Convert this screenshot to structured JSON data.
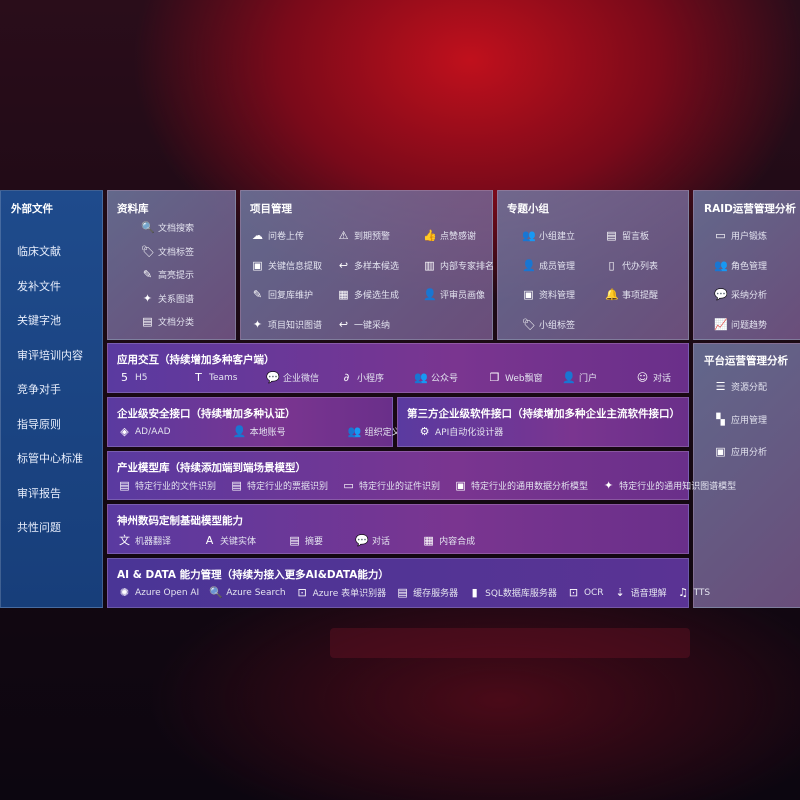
{
  "sidebar": {
    "title": "外部文件",
    "items": [
      "临床文献",
      "发补文件",
      "关键字池",
      "审评培训内容",
      "竞争对手",
      "指导原则",
      "标管中心标准",
      "审评报告",
      "共性问题"
    ]
  },
  "library": {
    "title": "资料库",
    "items": [
      {
        "icon": "doc-search-icon",
        "g": "🔍",
        "label": "文档搜索"
      },
      {
        "icon": "tag-icon",
        "g": "🏷",
        "label": "文档标签"
      },
      {
        "icon": "pen-icon",
        "g": "✎",
        "label": "高亮提示"
      },
      {
        "icon": "graph-icon",
        "g": "✦",
        "label": "关系图谱"
      },
      {
        "icon": "doc-category-icon",
        "g": "▤",
        "label": "文档分类"
      }
    ]
  },
  "project": {
    "title": "项目管理",
    "items": [
      {
        "icon": "cloud-upload-icon",
        "g": "☁",
        "label": "问卷上传"
      },
      {
        "icon": "alarm-icon",
        "g": "⚠",
        "label": "到期预警"
      },
      {
        "icon": "thumbs-up-icon",
        "g": "👍",
        "label": "点赞感谢"
      },
      {
        "icon": "window-icon",
        "g": "▣",
        "label": "关键信息提取"
      },
      {
        "icon": "reply-icon",
        "g": "↩",
        "label": "多样本候选"
      },
      {
        "icon": "ranking-icon",
        "g": "▥",
        "label": "内部专家排名"
      },
      {
        "icon": "edit-icon",
        "g": "✎",
        "label": "回复库维护"
      },
      {
        "icon": "puzzle-icon",
        "g": "▦",
        "label": "多候选生成"
      },
      {
        "icon": "person-icon",
        "g": "👤",
        "label": "评审员画像"
      },
      {
        "icon": "knowledge-graph-icon",
        "g": "✦",
        "label": "项目知识图谱"
      },
      {
        "icon": "reply-icon",
        "g": "↩",
        "label": "一键采纳"
      }
    ]
  },
  "group": {
    "title": "专题小组",
    "items": [
      {
        "icon": "users-icon",
        "g": "👥",
        "label": "小组建立"
      },
      {
        "icon": "bbs-icon",
        "g": "▤",
        "label": "留言板"
      },
      {
        "icon": "add-user-icon",
        "g": "👤",
        "label": "成员管理"
      },
      {
        "icon": "clipboard-icon",
        "g": "▯",
        "label": "代办列表"
      },
      {
        "icon": "folder-icon",
        "g": "▣",
        "label": "资料管理"
      },
      {
        "icon": "bell-icon",
        "g": "🔔",
        "label": "事项提醒"
      },
      {
        "icon": "tag-icon",
        "g": "🏷",
        "label": "小组标签"
      }
    ]
  },
  "raid": {
    "title": "RAID运营管理分析",
    "items": [
      {
        "icon": "id-card-icon",
        "g": "▭",
        "label": "用户锻炼"
      },
      {
        "icon": "users-icon",
        "g": "👥",
        "label": "角色管理"
      },
      {
        "icon": "qa-icon",
        "g": "💬",
        "label": "采纳分析"
      },
      {
        "icon": "trend-icon",
        "g": "📈",
        "label": "问题趋势"
      }
    ]
  },
  "platform": {
    "title": "平台运营管理分析",
    "items": [
      {
        "icon": "checklist-icon",
        "g": "☰",
        "label": "资源分配"
      },
      {
        "icon": "grid-icon",
        "g": "▚",
        "label": "应用管理"
      },
      {
        "icon": "chart-icon",
        "g": "▣",
        "label": "应用分析"
      }
    ]
  },
  "interaction": {
    "title": "应用交互（持续增加多种客户端）",
    "items": [
      {
        "icon": "html5-icon",
        "g": "5",
        "label": "H5"
      },
      {
        "icon": "teams-icon",
        "g": "T",
        "label": "Teams"
      },
      {
        "icon": "wechat-work-icon",
        "g": "💬",
        "label": "企业微信"
      },
      {
        "icon": "mini-program-icon",
        "g": "∂",
        "label": "小程序"
      },
      {
        "icon": "official-account-icon",
        "g": "👥",
        "label": "公众号"
      },
      {
        "icon": "web-window-icon",
        "g": "❐",
        "label": "Web飘窗"
      },
      {
        "icon": "portal-icon",
        "g": "👤",
        "label": "门户"
      },
      {
        "icon": "chat-icon",
        "g": "☺",
        "label": "对话"
      }
    ]
  },
  "security": {
    "title": "企业级安全接口（持续增加多种认证）",
    "items": [
      {
        "icon": "ad-icon",
        "g": "◈",
        "label": "AD/AAD"
      },
      {
        "icon": "local-account-icon",
        "g": "👤",
        "label": "本地账号"
      },
      {
        "icon": "organization-icon",
        "g": "👥",
        "label": "组织定义"
      }
    ]
  },
  "thirdparty": {
    "title": "第三方企业级软件接口（持续增加多种企业主流软件接口）",
    "items": [
      {
        "icon": "gear-icon",
        "g": "⚙",
        "label": "API自动化设计器"
      }
    ]
  },
  "industry": {
    "title": "产业模型库（持续添加端到端场景模型）",
    "items": [
      {
        "icon": "file-icon",
        "g": "▤",
        "label": "特定行业的文件识别"
      },
      {
        "icon": "receipt-icon",
        "g": "▤",
        "label": "特定行业的票据识别"
      },
      {
        "icon": "id-card-icon",
        "g": "▭",
        "label": "特定行业的证件识别"
      },
      {
        "icon": "data-analysis-icon",
        "g": "▣",
        "label": "特定行业的通用数据分析模型"
      },
      {
        "icon": "knowledge-graph-icon",
        "g": "✦",
        "label": "特定行业的通用知识图谱模型"
      }
    ]
  },
  "base": {
    "title": "神州数码定制基础模型能力",
    "items": [
      {
        "icon": "translate-icon",
        "g": "文",
        "label": "机器翻译"
      },
      {
        "icon": "entity-icon",
        "g": "A",
        "label": "关键实体"
      },
      {
        "icon": "summary-icon",
        "g": "▤",
        "label": "摘要"
      },
      {
        "icon": "chat-icon",
        "g": "💬",
        "label": "对话"
      },
      {
        "icon": "content-compose-icon",
        "g": "▦",
        "label": "内容合成"
      }
    ]
  },
  "aidata": {
    "title": "AI & DATA 能力管理（持续为接入更多AI&DATA能力）",
    "items": [
      {
        "icon": "openai-icon",
        "g": "✺",
        "label": "Azure Open AI"
      },
      {
        "icon": "azure-search-icon",
        "g": "🔍",
        "label": "Azure Search"
      },
      {
        "icon": "form-recognizer-icon",
        "g": "⊡",
        "label": "Azure 表单识别器"
      },
      {
        "icon": "cache-server-icon",
        "g": "▤",
        "label": "缓存服务器"
      },
      {
        "icon": "sql-icon",
        "g": "▮",
        "label": "SQL数据库服务器"
      },
      {
        "icon": "ocr-icon",
        "g": "⊡",
        "label": "OCR"
      },
      {
        "icon": "speech-icon",
        "g": "⇣",
        "label": "语音理解"
      },
      {
        "icon": "tts-icon",
        "g": "♫",
        "label": "TTS"
      }
    ]
  }
}
